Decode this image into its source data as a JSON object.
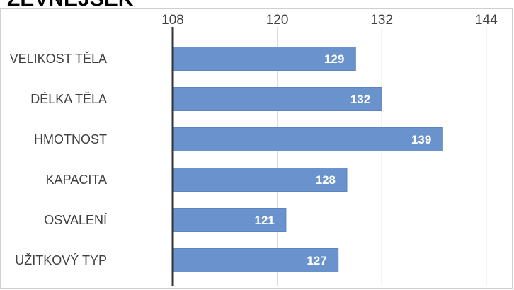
{
  "chart_data": {
    "type": "bar",
    "orientation": "horizontal",
    "title": "ZEVNĚJŠEK",
    "categories": [
      "VELIKOST TĚLA",
      "DÉLKA TĚLA",
      "HMOTNOST",
      "KAPACITA",
      "OSVALENÍ",
      "UŽITKOVÝ TYP"
    ],
    "values": [
      129,
      132,
      139,
      128,
      121,
      127
    ],
    "xlim": [
      108,
      144
    ],
    "xticks": [
      "108",
      "120",
      "132",
      "144"
    ],
    "axis_position": "top",
    "grid": true,
    "data_labels": [
      "129",
      "132",
      "139",
      "128",
      "121",
      "127"
    ],
    "colors": {
      "bar": "#6a93cd",
      "bar_edge": "#5b84c0",
      "axis": "#333333",
      "grid": "#d9d9d9"
    }
  }
}
